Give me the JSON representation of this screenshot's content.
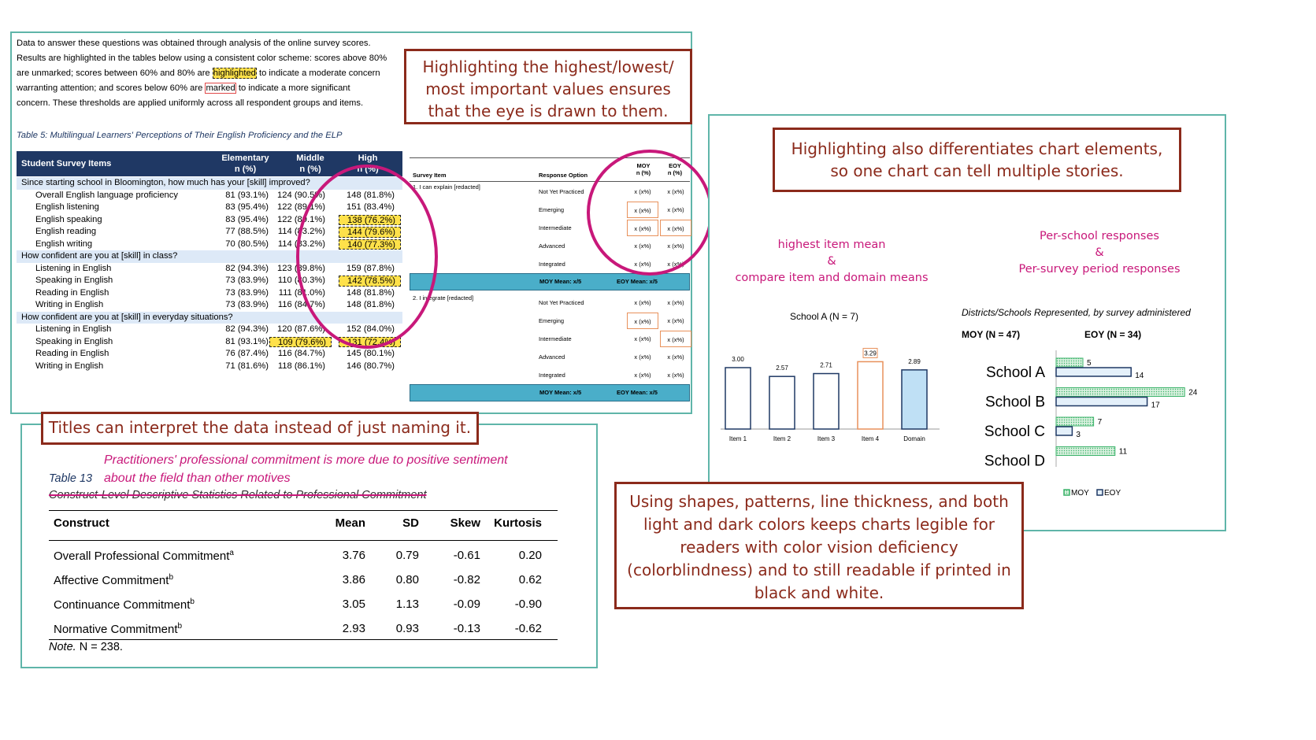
{
  "intro": {
    "line1": "Data to answer these questions was obtained through analysis of the online survey scores.",
    "line2": "Results are highlighted in the tables below using a consistent color scheme: scores above 80%",
    "line3a": "are unmarked; scores between 60% and 80% are ",
    "line3hl": "highlighted",
    "line3b": " to indicate a moderate concern",
    "line4a": "warranting attention; and scores below 60% are ",
    "line4hl": "marked",
    "line4b": " to indicate a more significant",
    "line5": "concern.  These thresholds are applied uniformly across all respondent groups and items."
  },
  "table5": {
    "caption": "Table 5: Multilingual Learners' Perceptions of Their English Proficiency and the ELP",
    "headers": [
      "Student Survey Items",
      "Elementary",
      "Middle",
      "High"
    ],
    "subheaders": [
      "n (%)",
      "n (%)",
      "n (%)"
    ],
    "sections": [
      {
        "title": "Since starting school in Bloomington, how much has your [skill] improved?",
        "rows": [
          {
            "item": "Overall English language proficiency",
            "v": [
              "81 (93.1%)",
              "124 (90.5%)",
              "148 (81.8%)"
            ],
            "hl": [
              false,
              false,
              false
            ]
          },
          {
            "item": "English listening",
            "v": [
              "83 (95.4%)",
              "122 (89.1%)",
              "151 (83.4%)"
            ],
            "hl": [
              false,
              false,
              false
            ]
          },
          {
            "item": "English speaking",
            "v": [
              "83 (95.4%)",
              "122 (89.1%)",
              "138 (76.2%)"
            ],
            "hl": [
              false,
              false,
              true
            ]
          },
          {
            "item": "English reading",
            "v": [
              "77 (88.5%)",
              "114 (83.2%)",
              "144 (79.6%)"
            ],
            "hl": [
              false,
              false,
              true
            ]
          },
          {
            "item": "English writing",
            "v": [
              "70 (80.5%)",
              "114 (83.2%)",
              "140 (77.3%)"
            ],
            "hl": [
              false,
              false,
              true
            ]
          }
        ]
      },
      {
        "title": "How confident are you at [skill] in class?",
        "rows": [
          {
            "item": "Listening in English",
            "v": [
              "82 (94.3%)",
              "123 (89.8%)",
              "159 (87.8%)"
            ],
            "hl": [
              false,
              false,
              false
            ]
          },
          {
            "item": "Speaking in English",
            "v": [
              "73 (83.9%)",
              "110 (80.3%)",
              "142 (78.5%)"
            ],
            "hl": [
              false,
              false,
              true
            ]
          },
          {
            "item": "Reading in English",
            "v": [
              "73 (83.9%)",
              "111 (81.0%)",
              "148 (81.8%)"
            ],
            "hl": [
              false,
              false,
              false
            ]
          },
          {
            "item": "Writing in English",
            "v": [
              "73 (83.9%)",
              "116 (84.7%)",
              "148 (81.8%)"
            ],
            "hl": [
              false,
              false,
              false
            ]
          }
        ]
      },
      {
        "title": "How confident are you at [skill] in everyday situations?",
        "rows": [
          {
            "item": "Listening in English",
            "v": [
              "82 (94.3%)",
              "120 (87.6%)",
              "152 (84.0%)"
            ],
            "hl": [
              false,
              false,
              false
            ]
          },
          {
            "item": "Speaking in English",
            "v": [
              "81 (93.1%)",
              "109 (79.6%)",
              "131 (72.4%)"
            ],
            "hl": [
              false,
              true,
              true
            ]
          },
          {
            "item": "Reading in English",
            "v": [
              "76 (87.4%)",
              "116 (84.7%)",
              "145 (80.1%)"
            ],
            "hl": [
              false,
              false,
              false
            ]
          },
          {
            "item": "Writing in English",
            "v": [
              "71 (81.6%)",
              "118 (86.1%)",
              "146 (80.7%)"
            ],
            "hl": [
              false,
              false,
              false
            ]
          }
        ]
      }
    ]
  },
  "survey_table": {
    "headers": [
      "Survey Item",
      "Response Option",
      "MOY",
      "EOY"
    ],
    "subheaders": [
      "n (%)",
      "n (%)"
    ],
    "blocks": [
      {
        "item": "1. I can explain [redacted]",
        "options": [
          "Not Yet Practiced",
          "Emerging",
          "Intermediate",
          "Advanced",
          "Integrated"
        ],
        "cell": "x (x%)",
        "mean": "MOY Mean: x/5",
        "mean2": "EOY Mean: x/5"
      },
      {
        "item": "2. I integrate [redacted]",
        "options": [
          "Not Yet Practiced",
          "Emerging",
          "Intermediate",
          "Advanced",
          "Integrated"
        ],
        "cell": "x (x%)",
        "mean": "MOY Mean: x/5",
        "mean2": "EOY Mean: x/5"
      }
    ]
  },
  "callouts": {
    "highlight": "Highlighting the highest/lowest/ most important values ensures that the eye is drawn to them.",
    "chart_elements": "Highlighting also differentiates chart elements, so one chart can tell multiple stories.",
    "titles": "Titles can interpret the data instead of just naming it.",
    "shapes": "Using shapes, patterns, line thickness, and both light and dark colors keeps charts legible for readers with color vision deficiency (colorblindness) and to still readable if printed in black and white."
  },
  "annotations": {
    "left_line1": "highest item mean",
    "left_line2": "&",
    "left_line3": "compare item and domain means",
    "right_line1": "Per-school responses",
    "right_line2": "&",
    "right_line3": "Per-survey period responses"
  },
  "colors": {
    "teal_border": "#5fb5a9",
    "callout": "#8b2a1b",
    "magenta": "#c8187a",
    "navy": "#1f3864",
    "orange": "#e8915b",
    "lightblue": "#bfe0f5",
    "green": "#3bb36a"
  },
  "chart_a": {
    "title": "School A (N = 7)",
    "chart_data": {
      "type": "bar",
      "categories": [
        "Item 1",
        "Item 2",
        "Item 3",
        "Item 4",
        "Domain"
      ],
      "values": [
        3.0,
        2.57,
        2.71,
        3.29,
        2.89
      ],
      "labels": [
        "3.00",
        "2.57",
        "2.71",
        "3.29",
        "2.89"
      ],
      "ylim": [
        0,
        4
      ]
    }
  },
  "chart_b": {
    "title": "Districts/Schools Represented, by survey administered",
    "moy_header": "MOY (N = 47)",
    "eoy_header": "EOY (N = 34)",
    "legend": [
      "MOY",
      "EOY"
    ],
    "chart_data": {
      "type": "bar",
      "categories": [
        "School A",
        "School B",
        "School C",
        "School D"
      ],
      "series": [
        {
          "name": "MOY",
          "values": [
            5,
            24,
            7,
            11
          ]
        },
        {
          "name": "EOY",
          "values": [
            14,
            17,
            3,
            null
          ]
        }
      ]
    }
  },
  "table13": {
    "new_title_line1": "Practitioners' professional commitment is more due to positive sentiment",
    "new_title_line2": "about the field than other motives",
    "label": "Table 13",
    "old_title": "Construct-Level Descriptive Statistics Related to Professional Commitment",
    "headers": [
      "Construct",
      "Mean",
      "SD",
      "Skew",
      "Kurtosis"
    ],
    "rows": [
      {
        "name": "Overall Professional Commitment",
        "sup": "a",
        "v": [
          "3.76",
          "0.79",
          "-0.61",
          "0.20"
        ]
      },
      {
        "name": "Affective Commitment",
        "sup": "b",
        "v": [
          "3.86",
          "0.80",
          "-0.82",
          "0.62"
        ]
      },
      {
        "name": "Continuance Commitment",
        "sup": "b",
        "v": [
          "3.05",
          "1.13",
          "-0.09",
          "-0.90"
        ]
      },
      {
        "name": "Normative Commitment",
        "sup": "b",
        "v": [
          "2.93",
          "0.93",
          "-0.13",
          "-0.62"
        ]
      }
    ],
    "note_label": "Note.",
    "note_text": " N = 238."
  }
}
